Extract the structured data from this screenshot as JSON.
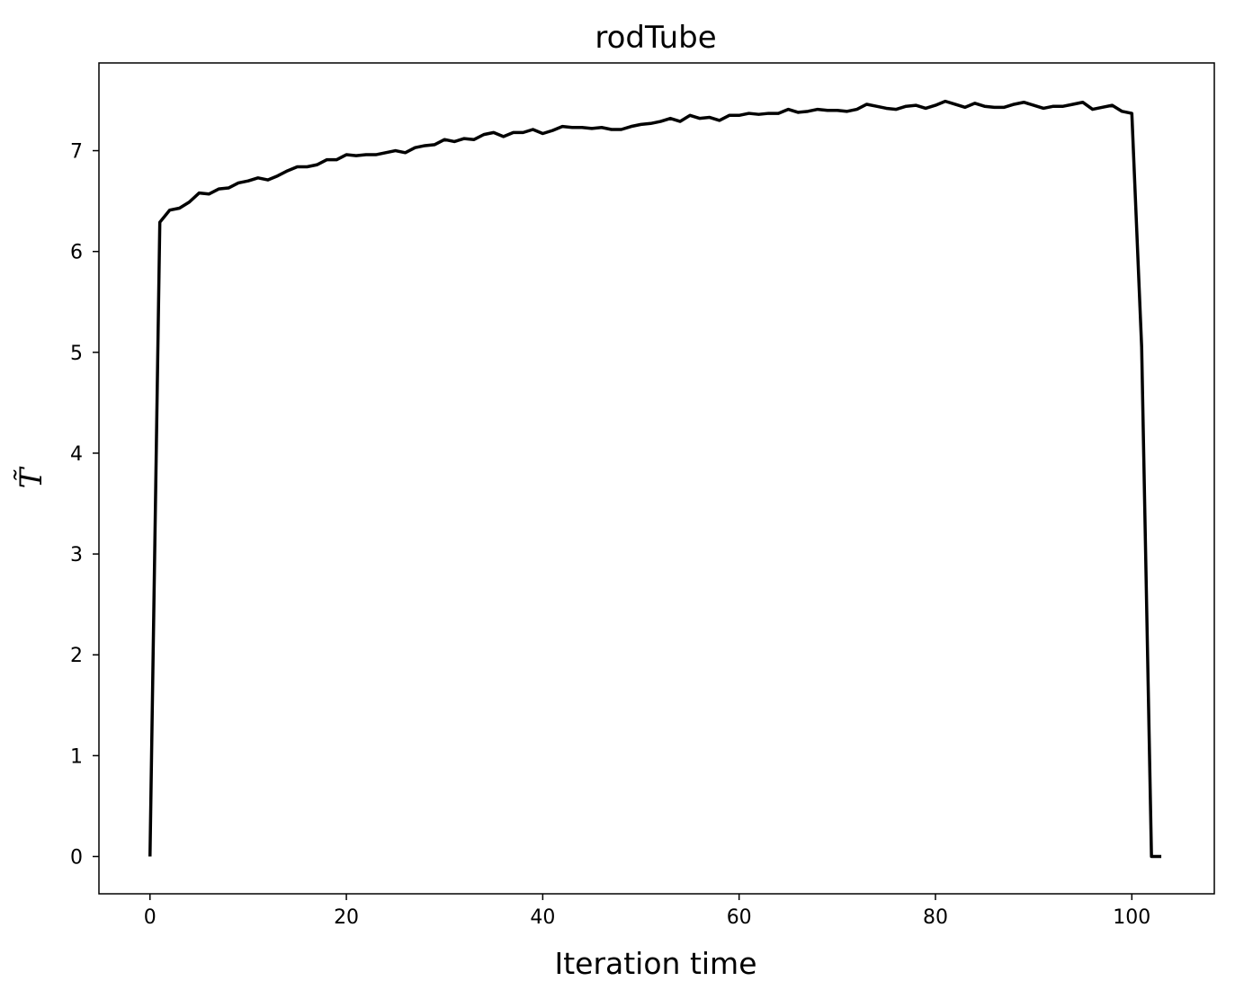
{
  "chart_data": {
    "type": "line",
    "title": "rodTube",
    "xlabel": "Iteration time",
    "ylabel": "T̃",
    "xlim": [
      -5.2,
      108.4
    ],
    "ylim": [
      -0.37,
      7.87
    ],
    "xticks": [
      0,
      20,
      40,
      60,
      80,
      100
    ],
    "yticks": [
      0,
      1,
      2,
      3,
      4,
      5,
      6,
      7
    ],
    "grid": false,
    "legend": "none",
    "colors": {
      "line": "#000000"
    },
    "series": [
      {
        "x": [
          0,
          1,
          2,
          3,
          4,
          5,
          6,
          7,
          8,
          9,
          10,
          11,
          12,
          13,
          14,
          15,
          16,
          17,
          18,
          19,
          20,
          21,
          22,
          23,
          24,
          25,
          26,
          27,
          28,
          29,
          30,
          31,
          32,
          33,
          34,
          35,
          36,
          37,
          38,
          39,
          40,
          41,
          42,
          43,
          44,
          45,
          46,
          47,
          48,
          49,
          50,
          51,
          52,
          53,
          54,
          55,
          56,
          57,
          58,
          59,
          60,
          61,
          62,
          63,
          64,
          65,
          66,
          67,
          68,
          69,
          70,
          71,
          72,
          73,
          74,
          75,
          76,
          77,
          78,
          79,
          80,
          81,
          82,
          83,
          84,
          85,
          86,
          87,
          88,
          89,
          90,
          91,
          92,
          93,
          94,
          95,
          96,
          97,
          98,
          99,
          100,
          101,
          102,
          103
        ],
        "y": [
          0,
          6.29,
          6.41,
          6.43,
          6.49,
          6.58,
          6.57,
          6.62,
          6.63,
          6.68,
          6.7,
          6.73,
          6.71,
          6.75,
          6.8,
          6.84,
          6.84,
          6.86,
          6.91,
          6.91,
          6.96,
          6.95,
          6.96,
          6.96,
          6.98,
          7.0,
          6.98,
          7.03,
          7.05,
          7.06,
          7.11,
          7.09,
          7.12,
          7.11,
          7.16,
          7.18,
          7.14,
          7.18,
          7.18,
          7.21,
          7.17,
          7.2,
          7.24,
          7.23,
          7.23,
          7.22,
          7.23,
          7.21,
          7.21,
          7.24,
          7.26,
          7.27,
          7.29,
          7.32,
          7.29,
          7.35,
          7.32,
          7.33,
          7.3,
          7.35,
          7.35,
          7.37,
          7.36,
          7.37,
          7.37,
          7.41,
          7.38,
          7.39,
          7.41,
          7.4,
          7.4,
          7.39,
          7.41,
          7.46,
          7.44,
          7.42,
          7.41,
          7.44,
          7.45,
          7.42,
          7.45,
          7.49,
          7.46,
          7.43,
          7.47,
          7.44,
          7.43,
          7.43,
          7.46,
          7.48,
          7.45,
          7.42,
          7.44,
          7.44,
          7.46,
          7.48,
          7.41,
          7.43,
          7.45,
          7.39,
          7.37,
          5.05,
          0,
          0
        ]
      }
    ]
  }
}
